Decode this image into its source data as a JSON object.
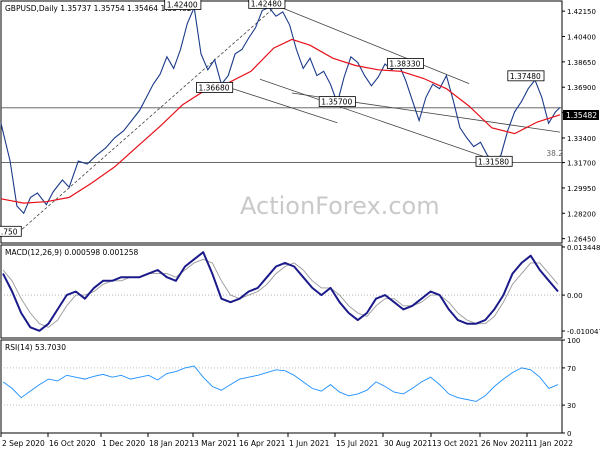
{
  "chart_data": [
    {
      "type": "line",
      "title": "GBPUSD,Daily  1.35737 1.35754 1.35464 1.35482",
      "watermark": "ActionForex.com",
      "x_ticks": [
        "2 Sep 2020",
        "16 Oct 2020",
        "1 Dec 2020",
        "18 Jan 2021",
        "3 Mar 2021",
        "16 Apr 2021",
        "1 Jun 2021",
        "15 Jul 2021",
        "30 Aug 2021",
        "13 Oct 2021",
        "26 Nov 2021",
        "11 Jan 2022"
      ],
      "y_ticks": [
        "1.42150",
        "1.40400",
        "1.38650",
        "1.36900",
        "1.35150",
        "1.33400",
        "1.31700",
        "1.29950",
        "1.28200",
        "1.26450"
      ],
      "ylim": [
        1.2615,
        1.4285
      ],
      "current_price": "1.35482",
      "series": [
        {
          "name": "",
          "color": "#1a3a8a",
          "points": [
            [
              0,
              1.344
            ],
            [
              4,
              1.318
            ],
            [
              7,
              1.287
            ],
            [
              10,
              1.282
            ],
            [
              13,
              1.293
            ],
            [
              16,
              1.296
            ],
            [
              20,
              1.288
            ],
            [
              23,
              1.297
            ],
            [
              27,
              1.305
            ],
            [
              30,
              1.3
            ],
            [
              34,
              1.318
            ],
            [
              38,
              1.316
            ],
            [
              42,
              1.322
            ],
            [
              46,
              1.327
            ],
            [
              50,
              1.334
            ],
            [
              54,
              1.339
            ],
            [
              58,
              1.347
            ],
            [
              61,
              1.353
            ],
            [
              64,
              1.362
            ],
            [
              67,
              1.371
            ],
            [
              70,
              1.378
            ],
            [
              73,
              1.39
            ],
            [
              76,
              1.382
            ],
            [
              79,
              1.395
            ],
            [
              82,
              1.413
            ],
            [
              85,
              1.424
            ],
            [
              88,
              1.392
            ],
            [
              91,
              1.381
            ],
            [
              94,
              1.388
            ],
            [
              97,
              1.371
            ],
            [
              100,
              1.377
            ],
            [
              103,
              1.392
            ],
            [
              106,
              1.395
            ],
            [
              109,
              1.403
            ],
            [
              112,
              1.41
            ],
            [
              115,
              1.422
            ],
            [
              118,
              1.424
            ],
            [
              121,
              1.418
            ],
            [
              124,
              1.421
            ],
            [
              127,
              1.412
            ],
            [
              130,
              1.395
            ],
            [
              133,
              1.382
            ],
            [
              136,
              1.389
            ],
            [
              139,
              1.377
            ],
            [
              142,
              1.38
            ],
            [
              145,
              1.371
            ],
            [
              148,
              1.358
            ],
            [
              151,
              1.376
            ],
            [
              154,
              1.39
            ],
            [
              157,
              1.386
            ],
            [
              160,
              1.377
            ],
            [
              163,
              1.37
            ],
            [
              166,
              1.376
            ],
            [
              169,
              1.385
            ],
            [
              172,
              1.381
            ],
            [
              175,
              1.385
            ],
            [
              178,
              1.374
            ],
            [
              181,
              1.36
            ],
            [
              184,
              1.346
            ],
            [
              187,
              1.362
            ],
            [
              190,
              1.371
            ],
            [
              193,
              1.368
            ],
            [
              196,
              1.377
            ],
            [
              199,
              1.36
            ],
            [
              202,
              1.341
            ],
            [
              205,
              1.334
            ],
            [
              208,
              1.328
            ],
            [
              211,
              1.331
            ],
            [
              214,
              1.322
            ],
            [
              217,
              1.318
            ],
            [
              220,
              1.322
            ],
            [
              223,
              1.339
            ],
            [
              226,
              1.352
            ],
            [
              229,
              1.359
            ],
            [
              232,
              1.368
            ],
            [
              235,
              1.374
            ],
            [
              238,
              1.362
            ],
            [
              241,
              1.344
            ],
            [
              244,
              1.352
            ],
            [
              246,
              1.355
            ]
          ]
        },
        {
          "name": "",
          "color": "#e8101a",
          "points": [
            [
              0,
              1.292
            ],
            [
              10,
              1.289
            ],
            [
              20,
              1.29
            ],
            [
              30,
              1.293
            ],
            [
              40,
              1.303
            ],
            [
              50,
              1.314
            ],
            [
              60,
              1.328
            ],
            [
              70,
              1.342
            ],
            [
              80,
              1.357
            ],
            [
              90,
              1.367
            ],
            [
              100,
              1.372
            ],
            [
              110,
              1.38
            ],
            [
              120,
              1.396
            ],
            [
              128,
              1.402
            ],
            [
              136,
              1.398
            ],
            [
              146,
              1.389
            ],
            [
              156,
              1.384
            ],
            [
              166,
              1.381
            ],
            [
              176,
              1.38
            ],
            [
              186,
              1.375
            ],
            [
              196,
              1.368
            ],
            [
              206,
              1.356
            ],
            [
              216,
              1.341
            ],
            [
              226,
              1.337
            ],
            [
              236,
              1.345
            ],
            [
              246,
              1.35
            ]
          ]
        }
      ],
      "annotations": [
        {
          "text": "1.42400",
          "x": 80,
          "y": 1.424
        },
        {
          "text": "1.42480",
          "x": 117,
          "y": 1.4248
        },
        {
          "text": "1.36680",
          "x": 94,
          "y": 1.3668
        },
        {
          "text": "1.35700",
          "x": 148,
          "y": 1.357
        },
        {
          "text": "1.38330",
          "x": 178,
          "y": 1.3833
        },
        {
          "text": "1.37480",
          "x": 231,
          "y": 1.3748
        },
        {
          "text": "1.31580",
          "x": 217,
          "y": 1.3158
        },
        {
          "text": ".750",
          "x": 4,
          "y": 1.2675
        },
        {
          "text": "38.2",
          "x": 240,
          "y": 1.3215
        }
      ],
      "level_lines": [
        1.3548,
        1.317
      ]
    },
    {
      "type": "line",
      "title": "MACD(12,26,9) 0.000598 0.001258",
      "y_ticks": [
        "0.013448",
        "0.00",
        "-0.010047"
      ],
      "ylim": [
        -0.012,
        0.014
      ],
      "series": [
        {
          "name": "",
          "color": "#1a1a8a",
          "values": [
            0.006,
            0.001,
            -0.005,
            -0.009,
            -0.01,
            -0.008,
            -0.004,
            0.0,
            0.001,
            -0.001,
            0.002,
            0.004,
            0.004,
            0.005,
            0.005,
            0.005,
            0.006,
            0.007,
            0.005,
            0.004,
            0.008,
            0.01,
            0.012,
            0.006,
            -0.001,
            -0.002,
            -0.001,
            0.001,
            0.002,
            0.005,
            0.008,
            0.009,
            0.008,
            0.005,
            0.002,
            0.0,
            0.002,
            -0.002,
            -0.005,
            -0.007,
            -0.005,
            -0.001,
            0.0,
            -0.002,
            -0.004,
            -0.003,
            -0.001,
            0.001,
            0.0,
            -0.004,
            -0.007,
            -0.008,
            -0.008,
            -0.007,
            -0.004,
            0.0,
            0.006,
            0.009,
            0.011,
            0.007,
            0.004,
            0.001
          ]
        },
        {
          "name": "",
          "color": "#999999",
          "values": [
            0.007,
            0.004,
            -0.001,
            -0.005,
            -0.008,
            -0.009,
            -0.007,
            -0.003,
            0.0,
            0.0,
            0.001,
            0.003,
            0.004,
            0.004,
            0.005,
            0.005,
            0.006,
            0.006,
            0.006,
            0.005,
            0.007,
            0.009,
            0.01,
            0.009,
            0.004,
            0.0,
            -0.001,
            0.0,
            0.001,
            0.003,
            0.006,
            0.008,
            0.009,
            0.007,
            0.004,
            0.002,
            0.002,
            0.0,
            -0.003,
            -0.005,
            -0.006,
            -0.003,
            -0.001,
            -0.001,
            -0.003,
            -0.003,
            -0.002,
            0.0,
            0.0,
            -0.002,
            -0.005,
            -0.007,
            -0.008,
            -0.008,
            -0.006,
            -0.002,
            0.003,
            0.006,
            0.009,
            0.009,
            0.006,
            0.003
          ]
        }
      ]
    },
    {
      "type": "line",
      "title": "RSI(14) 53.7030",
      "y_ticks": [
        "100",
        "70",
        "30",
        "0"
      ],
      "ylim": [
        0,
        100
      ],
      "series": [
        {
          "name": "",
          "color": "#1e90ff",
          "values": [
            55,
            48,
            38,
            45,
            52,
            58,
            56,
            62,
            60,
            58,
            61,
            63,
            60,
            62,
            58,
            60,
            62,
            57,
            64,
            66,
            70,
            72,
            60,
            50,
            46,
            52,
            58,
            60,
            62,
            65,
            68,
            67,
            62,
            55,
            48,
            45,
            52,
            44,
            40,
            42,
            46,
            55,
            50,
            44,
            42,
            48,
            55,
            60,
            52,
            42,
            38,
            36,
            34,
            40,
            50,
            58,
            65,
            70,
            68,
            60,
            48,
            52
          ]
        }
      ]
    }
  ]
}
